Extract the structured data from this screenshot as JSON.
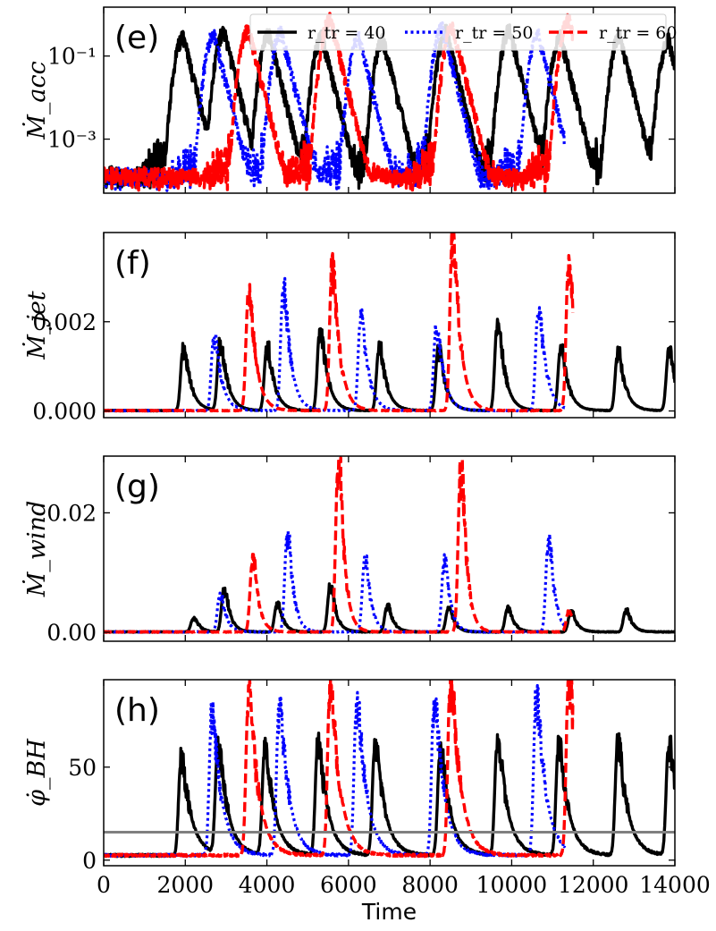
{
  "chart_data": [
    {
      "panel": "(e)",
      "type": "line",
      "ylabel": "Ṁ_acc",
      "yscale": "log",
      "ylim": [
        5e-05,
        1.5
      ],
      "yticks": [
        0.1,
        0.001
      ],
      "ytick_labels": [
        "10⁻¹",
        "10⁻³"
      ],
      "xlim": [
        0,
        14000
      ],
      "legend": {
        "placement": "top-right",
        "entries": [
          {
            "label": "r_tr = 40",
            "color": "#000000",
            "style": "solid"
          },
          {
            "label": "r_tr = 50",
            "color": "#0000ff",
            "style": "dotted"
          },
          {
            "label": "r_tr = 60",
            "color": "#ff0000",
            "style": "dashed"
          }
        ]
      },
      "baseline": 0.00012,
      "series": [
        {
          "name": "r_tr = 40",
          "color": "#000000",
          "dash": "solid",
          "end": 14000,
          "peaks": [
            [
              1950,
              0.3
            ],
            [
              2950,
              0.4
            ],
            [
              4050,
              0.35
            ],
            [
              5350,
              0.3
            ],
            [
              6850,
              0.25
            ],
            [
              8400,
              0.4
            ],
            [
              9950,
              0.45
            ],
            [
              11200,
              0.3
            ],
            [
              12650,
              0.3
            ],
            [
              13850,
              0.25
            ]
          ]
        },
        {
          "name": "r_tr = 50",
          "color": "#0000ff",
          "dash": "dotted",
          "end": 11300,
          "peaks": [
            [
              2700,
              0.35
            ],
            [
              4350,
              0.4
            ],
            [
              6250,
              0.3
            ],
            [
              8300,
              0.5
            ],
            [
              10650,
              0.35
            ]
          ]
        },
        {
          "name": "r_tr = 60",
          "color": "#ff0000",
          "dash": "dashed",
          "end": 11500,
          "peaks": [
            [
              3550,
              0.45
            ],
            [
              5550,
              0.85
            ],
            [
              8550,
              0.55
            ],
            [
              11400,
              0.8
            ]
          ]
        }
      ]
    },
    {
      "panel": "(f)",
      "type": "line",
      "ylabel": "Ṁ_jet",
      "yscale": "linear",
      "ylim": [
        -0.00015,
        0.004
      ],
      "yticks": [
        0,
        0.002
      ],
      "ytick_labels": [
        "0.000",
        "0.002"
      ],
      "xlim": [
        0,
        14000
      ],
      "series": [
        {
          "name": "r_tr = 40",
          "color": "#000000",
          "dash": "solid",
          "end": 14000,
          "peaks": [
            [
              2000,
              0.00135
            ],
            [
              2900,
              0.00145
            ],
            [
              4050,
              0.00135
            ],
            [
              5350,
              0.00175
            ],
            [
              6800,
              0.00135
            ],
            [
              8250,
              0.0013
            ],
            [
              9700,
              0.0019
            ],
            [
              11250,
              0.00135
            ],
            [
              12650,
              0.00125
            ],
            [
              13900,
              0.00125
            ]
          ]
        },
        {
          "name": "r_tr = 50",
          "color": "#0000ff",
          "dash": "dotted",
          "end": 11300,
          "peaks": [
            [
              2750,
              0.0016
            ],
            [
              4450,
              0.0026
            ],
            [
              6350,
              0.002
            ],
            [
              8200,
              0.0018
            ],
            [
              10700,
              0.0022
            ]
          ]
        },
        {
          "name": "r_tr = 60",
          "color": "#ff0000",
          "dash": "dashed",
          "end": 11500,
          "peaks": [
            [
              3600,
              0.0025
            ],
            [
              5650,
              0.0031
            ],
            [
              8600,
              0.0038
            ],
            [
              11450,
              0.0033
            ]
          ]
        }
      ]
    },
    {
      "panel": "(g)",
      "type": "line",
      "ylabel": "Ṁ_wind",
      "yscale": "linear",
      "ylim": [
        -0.0015,
        0.0295
      ],
      "yticks": [
        0,
        0.02
      ],
      "ytick_labels": [
        "0.00",
        "0.02"
      ],
      "xlim": [
        0,
        14000
      ],
      "series": [
        {
          "name": "r_tr = 40",
          "color": "#000000",
          "dash": "solid",
          "end": 14000,
          "peaks": [
            [
              2250,
              0.0022
            ],
            [
              3000,
              0.0068
            ],
            [
              4300,
              0.0045
            ],
            [
              5600,
              0.0072
            ],
            [
              7000,
              0.0042
            ],
            [
              8500,
              0.0038
            ],
            [
              9950,
              0.0038
            ],
            [
              11500,
              0.0032
            ],
            [
              12850,
              0.0035
            ]
          ]
        },
        {
          "name": "r_tr = 50",
          "color": "#0000ff",
          "dash": "dotted",
          "end": 11300,
          "peaks": [
            [
              2900,
              0.006
            ],
            [
              4550,
              0.0155
            ],
            [
              6450,
              0.0115
            ],
            [
              8400,
              0.0115
            ],
            [
              10950,
              0.0145
            ]
          ]
        },
        {
          "name": "r_tr = 60",
          "color": "#ff0000",
          "dash": "dashed",
          "end": 11500,
          "peaks": [
            [
              3700,
              0.0115
            ],
            [
              5800,
              0.0275
            ],
            [
              8800,
              0.0255
            ],
            [
              11450,
              0.0032
            ]
          ]
        }
      ]
    },
    {
      "panel": "(h)",
      "type": "line",
      "ylabel": "φ̇_BH",
      "xlabel": "Time",
      "yscale": "linear",
      "ylim": [
        -3,
        97
      ],
      "yticks": [
        0,
        50
      ],
      "ytick_labels": [
        "0",
        "50"
      ],
      "xlim": [
        0,
        14000
      ],
      "xticks": [
        0,
        2000,
        4000,
        6000,
        8000,
        10000,
        12000,
        14000
      ],
      "xtick_labels": [
        "0",
        "2000",
        "4000",
        "6000",
        "8000",
        "10000",
        "12000",
        "14000"
      ],
      "reference_line": {
        "y": 15,
        "color": "#808080"
      },
      "series": [
        {
          "name": "r_tr = 40",
          "color": "#000000",
          "dash": "solid",
          "end": 14000,
          "peaks": [
            [
              1950,
              50
            ],
            [
              2850,
              55
            ],
            [
              4000,
              55
            ],
            [
              5300,
              57
            ],
            [
              6700,
              57
            ],
            [
              8300,
              55
            ],
            [
              9700,
              60
            ],
            [
              11200,
              57
            ],
            [
              12650,
              57
            ],
            [
              13900,
              58
            ]
          ]
        },
        {
          "name": "r_tr = 50",
          "color": "#0000ff",
          "dash": "dotted",
          "end": 11300,
          "peaks": [
            [
              2700,
              72
            ],
            [
              4350,
              76
            ],
            [
              6250,
              78
            ],
            [
              8150,
              80
            ],
            [
              10650,
              80
            ]
          ]
        },
        {
          "name": "r_tr = 60",
          "color": "#ff0000",
          "dash": "dashed",
          "end": 11500,
          "peaks": [
            [
              3600,
              82
            ],
            [
              5600,
              87
            ],
            [
              8550,
              91
            ],
            [
              11450,
              92
            ]
          ]
        }
      ]
    }
  ]
}
